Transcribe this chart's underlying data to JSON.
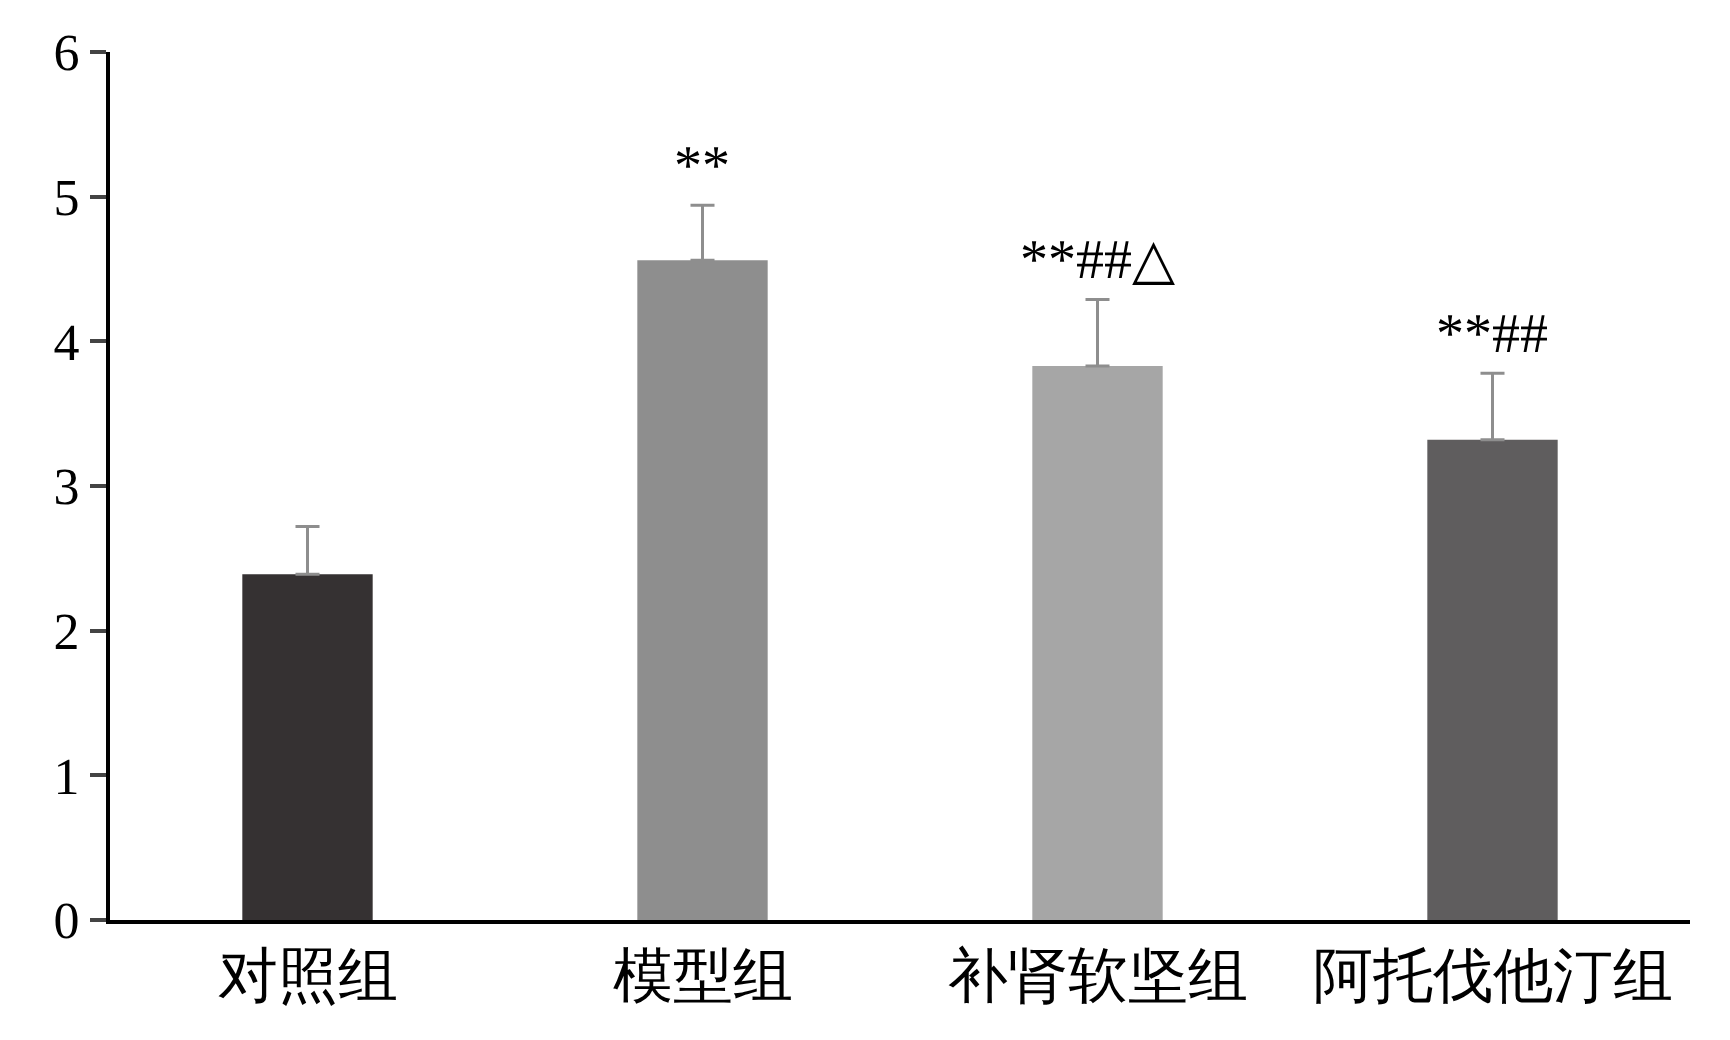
{
  "chart_data": {
    "type": "bar",
    "categories": [
      "对照组",
      "模型组",
      "补肾软坚组",
      "阿托伐他汀组"
    ],
    "values": [
      2.39,
      4.56,
      3.83,
      3.32
    ],
    "colors": [
      "#353132",
      "#8e8e8e",
      "#a6a6a6",
      "#5f5d5e"
    ],
    "errors": [
      [
        2.39,
        2.72
      ],
      [
        4.56,
        4.94
      ],
      [
        3.83,
        4.29
      ],
      [
        3.32,
        3.78
      ]
    ],
    "ylim": [
      0,
      6
    ],
    "yticks": [
      0,
      1,
      2,
      3,
      4,
      5,
      6
    ],
    "annotations": [
      {
        "text": "**",
        "x": "模型组",
        "y": 4.94
      },
      {
        "text": "**##△",
        "x": "补肾软坚组",
        "y": 4.29
      },
      {
        "text": "**##",
        "x": "阿托伐他汀组",
        "y": 3.78
      }
    ]
  }
}
